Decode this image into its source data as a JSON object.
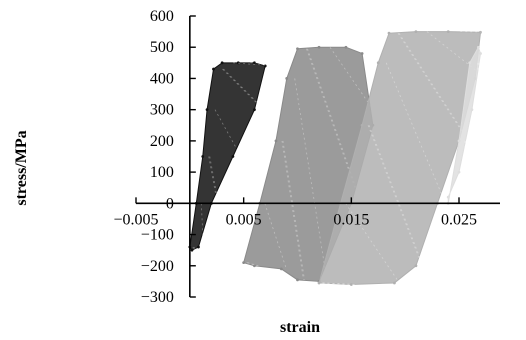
{
  "chart_data": {
    "type": "scatter",
    "xlabel": "strain",
    "ylabel": "stress/MPa",
    "xlim": [
      -0.005,
      0.03
    ],
    "ylim": [
      -300,
      600
    ],
    "x_ticks": [
      -0.005,
      0.005,
      0.015,
      0.025
    ],
    "x_tick_labels": [
      "−0.005",
      "0.005",
      "0.015",
      "0.025"
    ],
    "y_ticks": [
      -300,
      -200,
      -100,
      0,
      100,
      200,
      300,
      400,
      500,
      600
    ],
    "y_tick_labels": [
      "−300",
      "−200",
      "−100",
      "0",
      "100",
      "200",
      "300",
      "400",
      "500",
      "600"
    ],
    "grid": false,
    "legend": "none",
    "series": [
      {
        "color": "#111111",
        "x": [
          0.0,
          0.0006,
          0.0012,
          0.0016,
          0.0022,
          0.003,
          0.0045,
          0.006,
          0.007,
          0.006,
          0.004,
          0.002,
          0.0008,
          0.0002
        ],
        "y": [
          -140,
          0,
          150,
          300,
          430,
          450,
          450,
          450,
          440,
          300,
          150,
          0,
          -140,
          -150
        ]
      },
      {
        "color": "#8a8a8a",
        "x": [
          0.005,
          0.0065,
          0.008,
          0.009,
          0.01,
          0.012,
          0.0145,
          0.016,
          0.017,
          0.015,
          0.012,
          0.01,
          0.0085,
          0.006
        ],
        "y": [
          -190,
          0,
          200,
          400,
          495,
          500,
          500,
          480,
          250,
          0,
          -250,
          -245,
          -210,
          -200
        ]
      },
      {
        "color": "#b0b0b0",
        "x": [
          0.012,
          0.014,
          0.016,
          0.0175,
          0.0185,
          0.021,
          0.024,
          0.027,
          0.0265,
          0.025,
          0.023,
          0.021,
          0.019,
          0.015
        ],
        "y": [
          -255,
          0,
          250,
          450,
          545,
          550,
          550,
          548,
          400,
          200,
          0,
          -200,
          -255,
          -260
        ]
      },
      {
        "color": "#dedede",
        "x": [
          0.024,
          0.025,
          0.026,
          0.0268,
          0.027,
          0.0262,
          0.025,
          0.024
        ],
        "y": [
          0,
          200,
          450,
          500,
          480,
          300,
          100,
          20
        ]
      }
    ]
  }
}
